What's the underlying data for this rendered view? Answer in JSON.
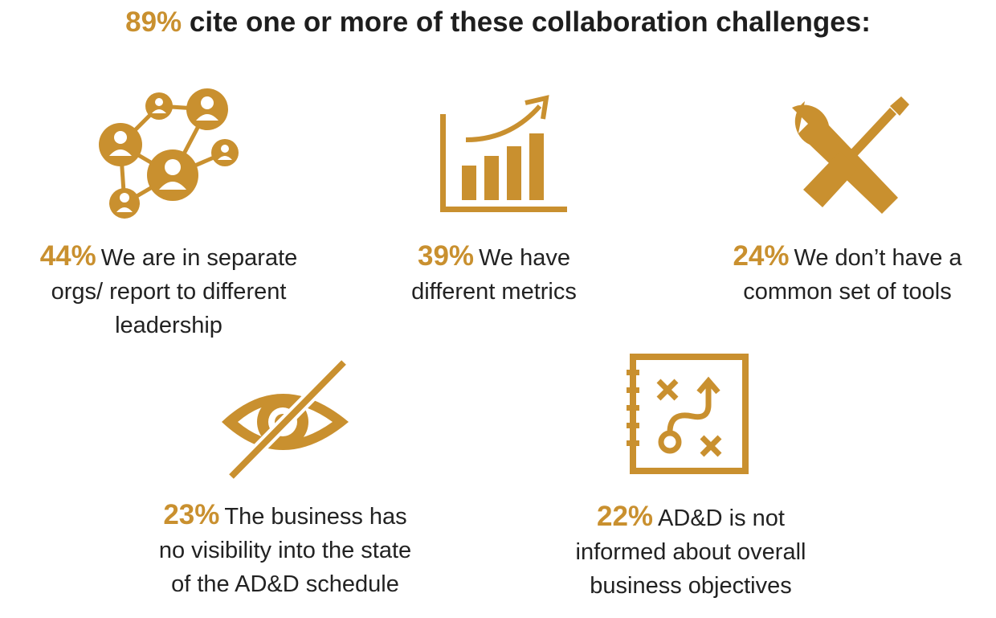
{
  "title": {
    "percent": "89%",
    "text": "cite one or more of these collaboration challenges:"
  },
  "accent_color": "#c9902f",
  "items": [
    {
      "icon": "network-people-icon",
      "percent": "44%",
      "lines": [
        "We are in separate",
        "orgs/ report to different",
        "leadership"
      ]
    },
    {
      "icon": "bar-chart-growth-icon",
      "percent": "39%",
      "lines": [
        "We have",
        "different metrics"
      ]
    },
    {
      "icon": "wrench-screwdriver-icon",
      "percent": "24%",
      "lines": [
        "We don’t have a",
        "common set of tools"
      ]
    },
    {
      "icon": "eye-slash-icon",
      "percent": "23%",
      "lines": [
        "The business has",
        "no visibility into the state",
        "of the AD&D schedule"
      ]
    },
    {
      "icon": "strategy-notebook-icon",
      "percent": "22%",
      "lines": [
        "AD&D is not",
        "informed about overall",
        "business objectives"
      ]
    }
  ]
}
